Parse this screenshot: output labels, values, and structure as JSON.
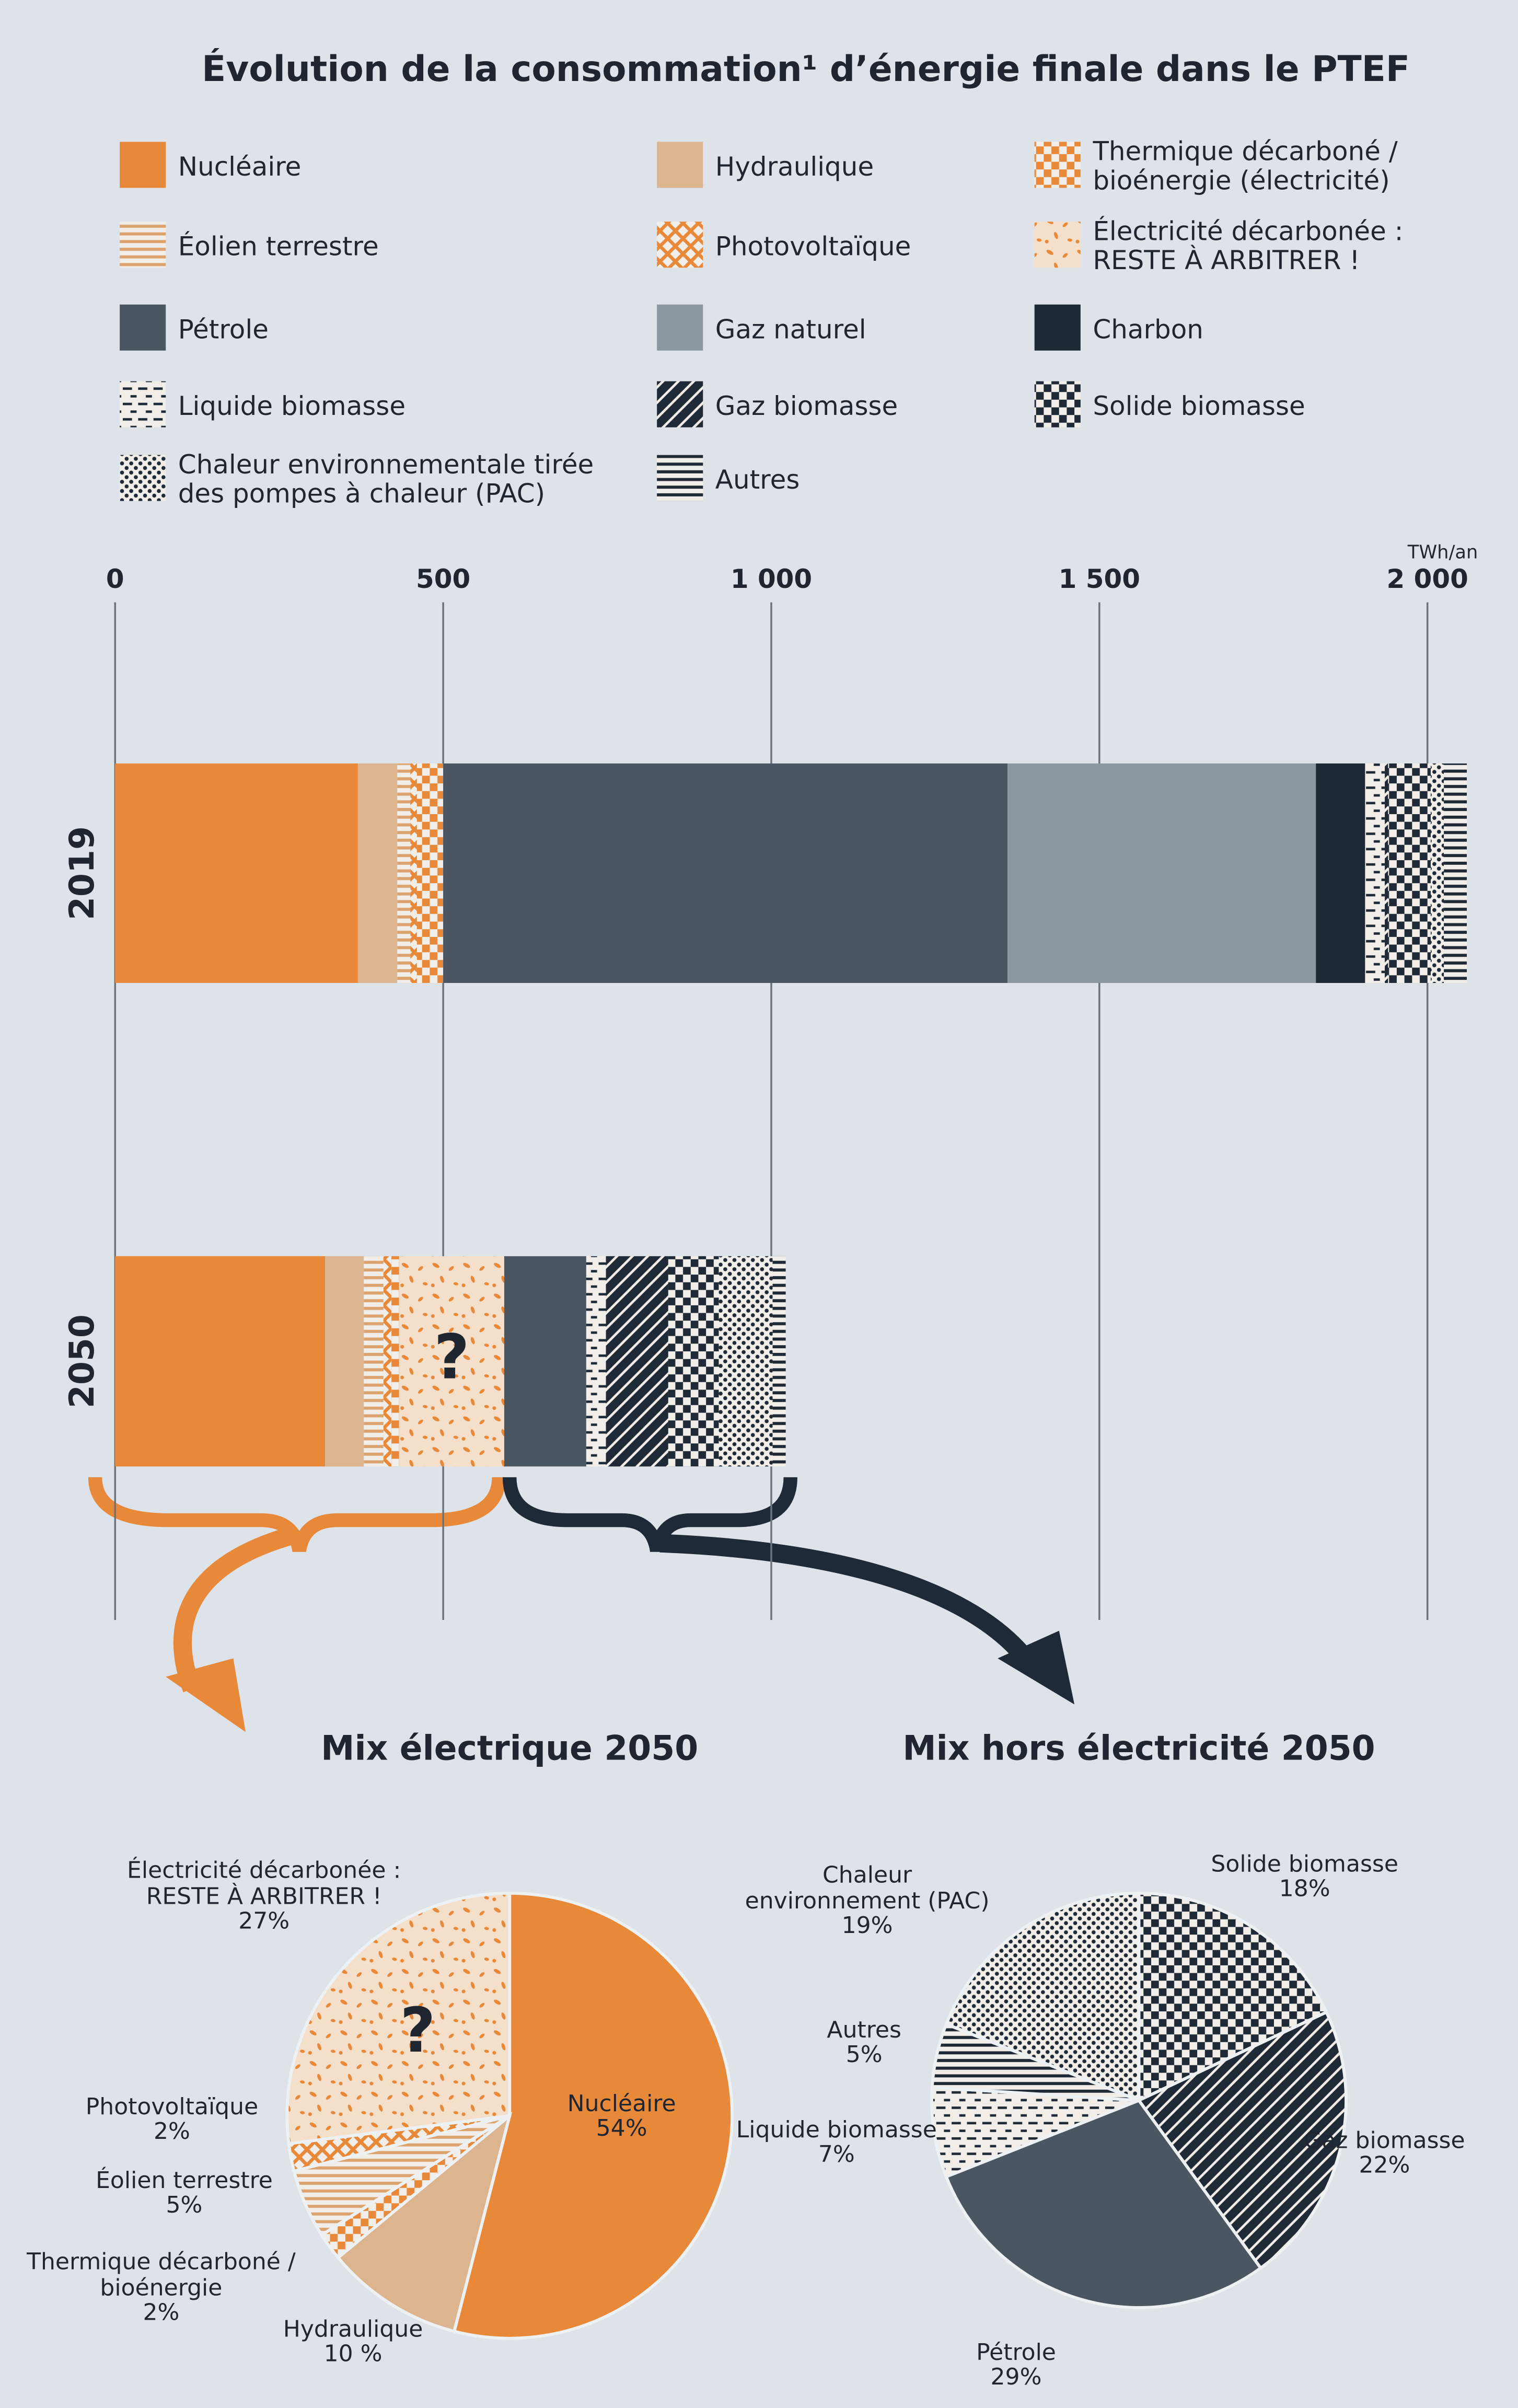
{
  "chart_data": [
    {
      "type": "stacked-barh",
      "title": "Évolution de la consommation¹ d’énergie finale dans le PTEF",
      "x_label": "TWh/an",
      "categories": [
        "2019",
        "2050"
      ],
      "xlim": [
        0,
        2000
      ],
      "xticks": [
        0,
        500,
        {
          "value": 1000,
          "label": "1 000"
        },
        {
          "value": 1500,
          "label": "1 500"
        },
        {
          "value": 2000,
          "label": "2 000"
        }
      ],
      "grid": true,
      "annotation": "?",
      "series": [
        {
          "name": "Nucléaire",
          "color": "#e8893a",
          "pattern": "solid",
          "values": [
            370,
            320
          ]
        },
        {
          "name": "Hydraulique",
          "color": "#dcb48e",
          "pattern": "solid",
          "values": [
            60,
            59
          ]
        },
        {
          "name": "Éolien terrestre",
          "color": "#dca36e",
          "pattern": "stripes",
          "values": [
            20,
            30
          ]
        },
        {
          "name": "Photovoltaïque",
          "color": "#e8893a",
          "pattern": "cross",
          "values": [
            10,
            12
          ]
        },
        {
          "name": "Thermique décarboné / bioénergie (électricité)",
          "color": "#e8893a",
          "pattern": "checker",
          "values": [
            40,
            12
          ]
        },
        {
          "name": "Électricité décarbonée : RESTE À ARBITRER !",
          "color": "#e8893a",
          "pattern": "confetti",
          "values": [
            null,
            160
          ]
        },
        {
          "name": "Pétrole",
          "color": "#4b5661",
          "pattern": "solid",
          "values": [
            860,
            125
          ]
        },
        {
          "name": "Gaz naturel",
          "color": "#8c979f",
          "pattern": "solid",
          "values": [
            470,
            null
          ]
        },
        {
          "name": "Charbon",
          "color": "#1f2933",
          "pattern": "solid",
          "values": [
            75,
            null
          ]
        },
        {
          "name": "Liquide biomasse",
          "color": "#1f2a36",
          "pattern": "dash",
          "values": [
            30,
            30
          ]
        },
        {
          "name": "Gaz biomasse",
          "color": "#1f2a36",
          "pattern": "diag",
          "values": [
            5,
            95
          ]
        },
        {
          "name": "Solide biomasse",
          "color": "#1f2a36",
          "pattern": "checker",
          "values": [
            65,
            77
          ]
        },
        {
          "name": "Chaleur environnementale tirée des pompes à chaleur (PAC)",
          "color": "#1f2a36",
          "pattern": "dots",
          "values": [
            20,
            82
          ]
        },
        {
          "name": "Autres",
          "color": "#1f2a36",
          "pattern": "stripes",
          "values": [
            35,
            20
          ]
        }
      ]
    },
    {
      "type": "pie",
      "title": "Mix électrique 2050",
      "annotation": "?",
      "categories": [
        "Nucléaire",
        "Hydraulique",
        "Thermique décarboné / bioénergie",
        "Éolien terrestre",
        "Photovoltaïque",
        "Électricité décarbonée : RESTE À ARBITRER !"
      ],
      "values": [
        54,
        10,
        2,
        5,
        2,
        27
      ],
      "value_labels": [
        "54%",
        "10 %",
        "2%",
        "5%",
        "2%",
        "27%"
      ],
      "colors": [
        "#e8893a",
        "#dcb48e",
        "#e8893a",
        "#dca36e",
        "#e8893a",
        "#e8893a"
      ],
      "patterns": [
        "solid",
        "solid",
        "checker",
        "stripes",
        "cross",
        "confetti"
      ]
    },
    {
      "type": "pie",
      "title": "Mix hors électricité 2050",
      "categories": [
        "Solide biomasse",
        "Gaz biomasse",
        "Pétrole",
        "Liquide biomasse",
        "Autres",
        "Chaleur environnement (PAC)"
      ],
      "values": [
        18,
        22,
        29,
        7,
        5,
        19
      ],
      "value_labels": [
        "18%",
        "22%",
        "29%",
        "7%",
        "5%",
        "19%"
      ],
      "colors": [
        "#1f2a36",
        "#1f2a36",
        "#4b5661",
        "#1f2a36",
        "#1f2a36",
        "#1f2a36"
      ],
      "patterns": [
        "checker",
        "diag",
        "solid",
        "dash",
        "stripes",
        "dots"
      ]
    }
  ]
}
